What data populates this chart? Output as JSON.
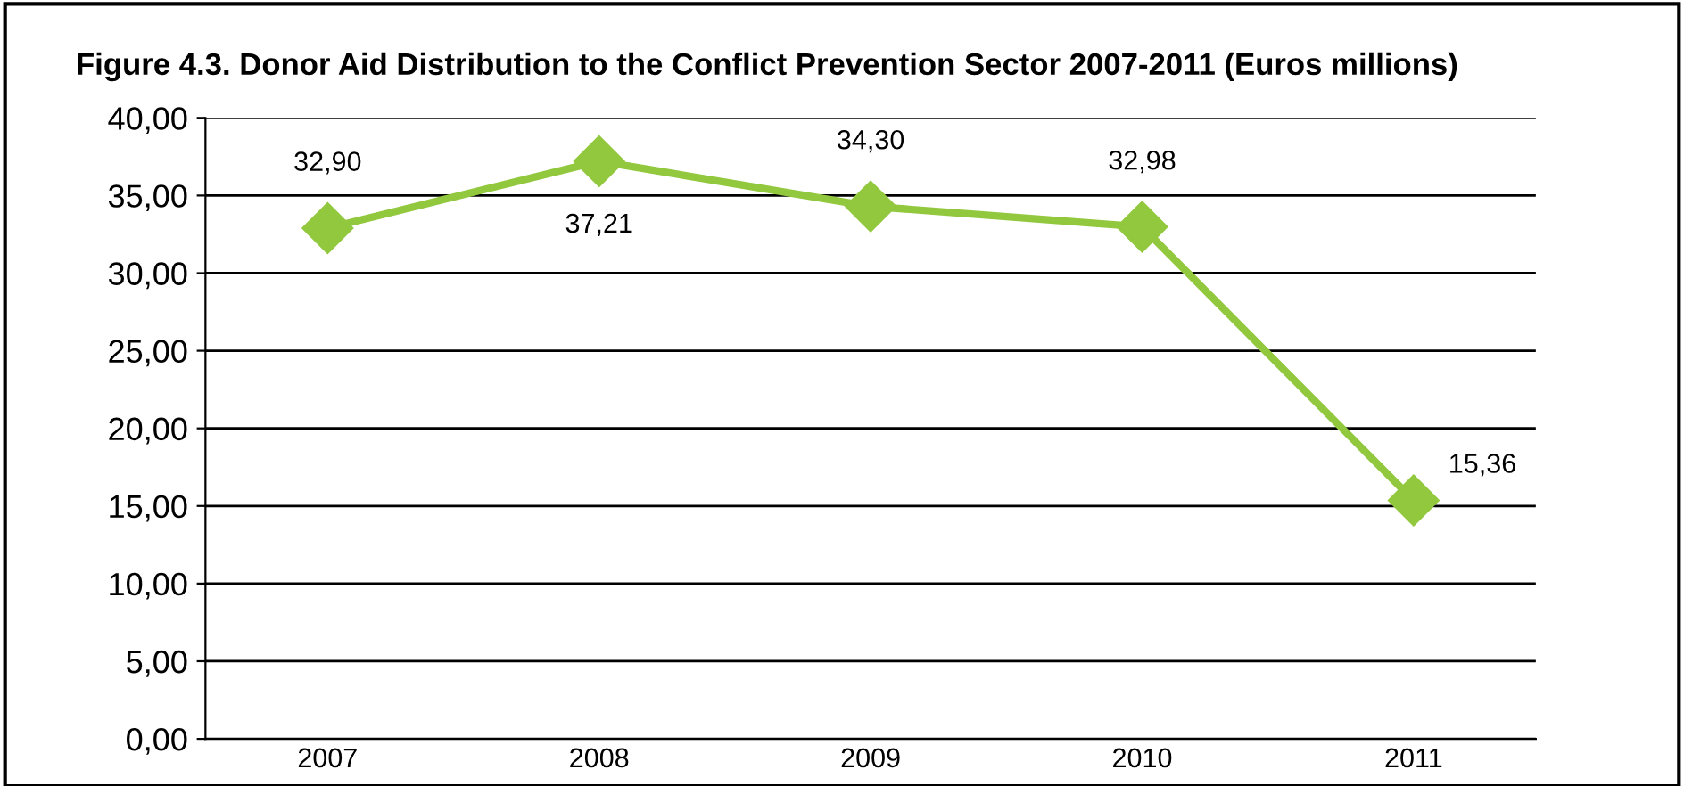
{
  "chart_data": {
    "type": "line",
    "title": "Figure 4.3. Donor Aid Distribution to the Conflict Prevention Sector 2007-2011 (Euros millions)",
    "categories": [
      "2007",
      "2008",
      "2009",
      "2010",
      "2011"
    ],
    "series": [
      {
        "color": "#92c83e",
        "values": [
          32.9,
          37.21,
          34.3,
          32.98,
          15.36
        ],
        "value_labels": [
          "32,90",
          "37,21",
          "34,30",
          "32,98",
          "15,36"
        ]
      }
    ],
    "ylim": [
      0,
      40
    ],
    "yticks": [
      {
        "value": 0,
        "label": "0,00"
      },
      {
        "value": 5,
        "label": "5,00"
      },
      {
        "value": 10,
        "label": "10,00"
      },
      {
        "value": 15,
        "label": "15,00"
      },
      {
        "value": 20,
        "label": "20,00"
      },
      {
        "value": 25,
        "label": "25,00"
      },
      {
        "value": 30,
        "label": "30,00"
      },
      {
        "value": 35,
        "label": "35,00"
      },
      {
        "value": 40,
        "label": "40,00"
      }
    ],
    "grid": "y",
    "marker": "diamond",
    "line_style": "solid",
    "legend": false
  }
}
